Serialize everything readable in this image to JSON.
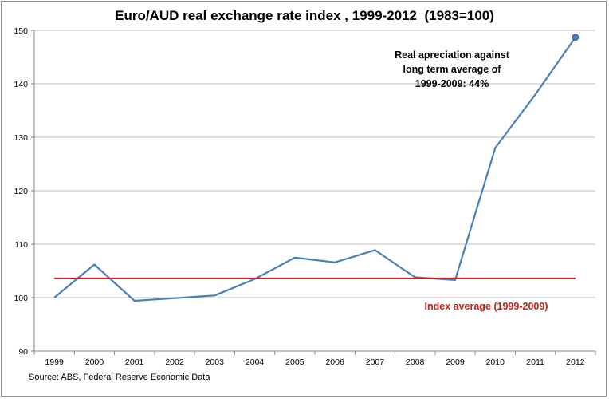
{
  "chart_data": {
    "type": "line",
    "title": "Euro/AUD real exchange rate index , 1999-2012  (1983=100)",
    "xlabel": "",
    "ylabel": "",
    "categories": [
      "1999",
      "2000",
      "2001",
      "2002",
      "2003",
      "2004",
      "2005",
      "2006",
      "2007",
      "2008",
      "2009",
      "2010",
      "2011",
      "2012"
    ],
    "ylim": [
      90,
      150
    ],
    "yticks": [
      90,
      100,
      110,
      120,
      130,
      140,
      150
    ],
    "grid": true,
    "series": [
      {
        "name": "Euro/AUD real exchange rate index",
        "color": "#4a7ebb",
        "values": [
          100.0,
          106.2,
          99.4,
          99.9,
          100.4,
          103.5,
          107.5,
          106.6,
          108.9,
          103.8,
          103.3,
          128.0,
          138.0,
          148.7
        ]
      },
      {
        "name": "Index average (1999-2009)",
        "color": "#c0201b",
        "values": [
          103.6,
          103.6,
          103.6,
          103.6,
          103.6,
          103.6,
          103.6,
          103.6,
          103.6,
          103.6,
          103.6,
          103.6,
          103.6,
          103.6
        ]
      }
    ],
    "annotations": {
      "appreciation_lines": [
        "Real apreciation against",
        "long term average of",
        "1999-2009: 44%"
      ],
      "average_label": "Index average (1999-2009)"
    },
    "source": "Source: ABS, Federal Reserve Economic Data"
  }
}
